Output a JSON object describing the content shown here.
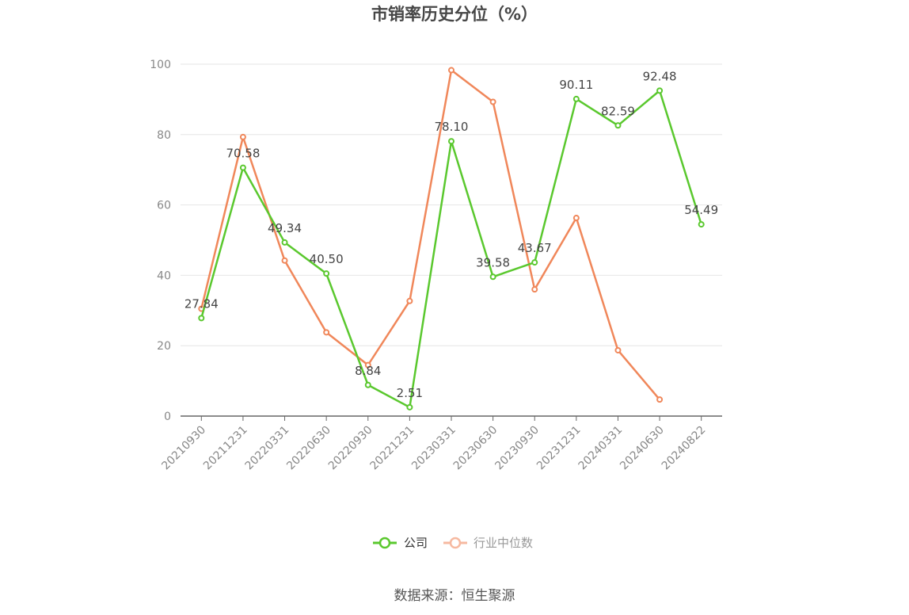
{
  "chart_data": {
    "type": "line",
    "title": "市销率历史分位（%）",
    "categories": [
      "20210930",
      "20211231",
      "20220331",
      "20220630",
      "20220930",
      "20221231",
      "20230331",
      "20230630",
      "20230930",
      "20231231",
      "20240331",
      "20240630",
      "20240822"
    ],
    "ylim": [
      0,
      100
    ],
    "yticks": [
      0,
      20,
      40,
      60,
      80,
      100
    ],
    "grid": true,
    "legend_position": "bottom",
    "series": [
      {
        "name": "公司",
        "color": "#5ac82e",
        "values": [
          27.84,
          70.58,
          49.34,
          40.5,
          8.84,
          2.51,
          78.1,
          39.58,
          43.67,
          90.11,
          82.59,
          92.48,
          54.49
        ],
        "labels": [
          "27.84",
          "70.58",
          "49.34",
          "40.50",
          "8.84",
          "2.51",
          "78.10",
          "39.58",
          "43.67",
          "90.11",
          "82.59",
          "92.48",
          "54.49"
        ]
      },
      {
        "name": "行业中位数",
        "color": "#f0875a",
        "values": [
          30.5,
          79.3,
          44.2,
          23.8,
          14.5,
          32.7,
          98.3,
          89.3,
          36.0,
          56.3,
          18.7,
          4.7,
          null
        ]
      }
    ],
    "source": "数据来源：恒生聚源"
  }
}
